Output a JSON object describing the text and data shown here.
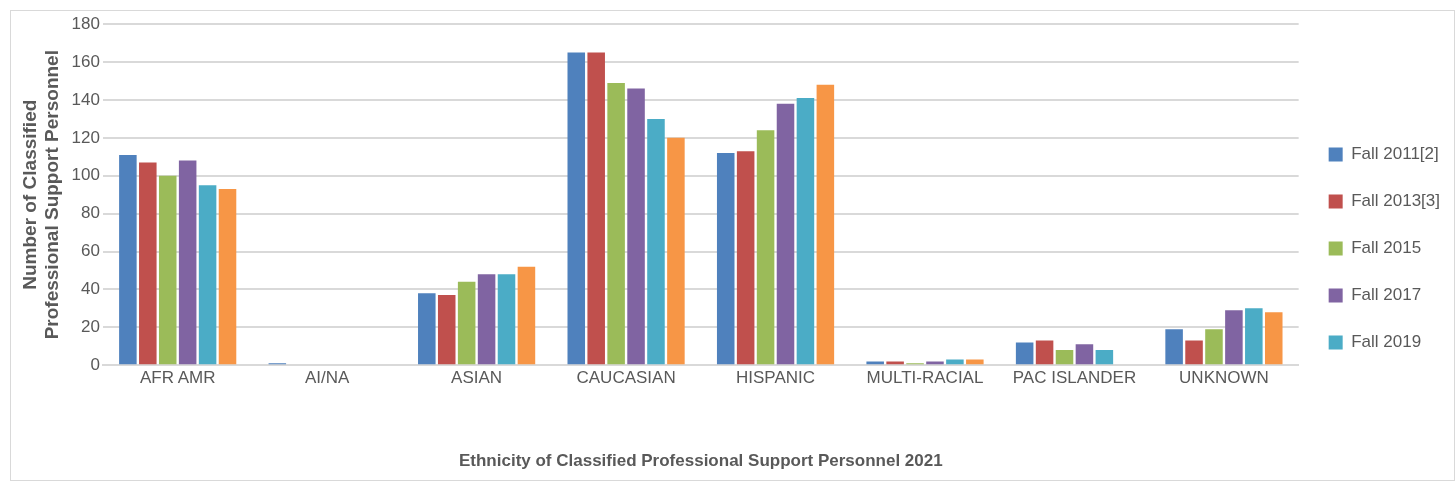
{
  "chart_data": {
    "type": "bar",
    "xlabel": "Ethnicity of Classified Professional Support Personnel 2021",
    "ylabel": "Number of Classified Professional Support Personnel",
    "categories": [
      "AFR AMR",
      "AI/NA",
      "ASIAN",
      "CAUCASIAN",
      "HISPANIC",
      "MULTI-RACIAL",
      "PAC ISLANDER",
      "UNKNOWN"
    ],
    "series": [
      {
        "name": "Fall 2011[2]",
        "color": "#4f81bd",
        "values": [
          111,
          1,
          38,
          165,
          112,
          2,
          12,
          19
        ]
      },
      {
        "name": "Fall 2013[3]",
        "color": "#c0504d",
        "values": [
          107,
          0,
          37,
          165,
          113,
          2,
          13,
          13
        ]
      },
      {
        "name": "Fall 2015",
        "color": "#9bbb59",
        "values": [
          100,
          0,
          44,
          149,
          124,
          1,
          8,
          19
        ]
      },
      {
        "name": "Fall 2017",
        "color": "#8064a2",
        "values": [
          108,
          0,
          48,
          146,
          138,
          2,
          11,
          29
        ]
      },
      {
        "name": "Fall 2019",
        "color": "#4bacc6",
        "values": [
          95,
          0,
          48,
          130,
          141,
          3,
          8,
          30
        ]
      },
      {
        "color": "#f79646",
        "values": [
          93,
          0,
          52,
          120,
          148,
          3,
          0,
          28
        ]
      }
    ],
    "ylim": [
      0,
      180
    ],
    "yticks": [
      0,
      20,
      40,
      60,
      80,
      100,
      120,
      140,
      160,
      180
    ],
    "grid": "y",
    "legend": "right"
  }
}
